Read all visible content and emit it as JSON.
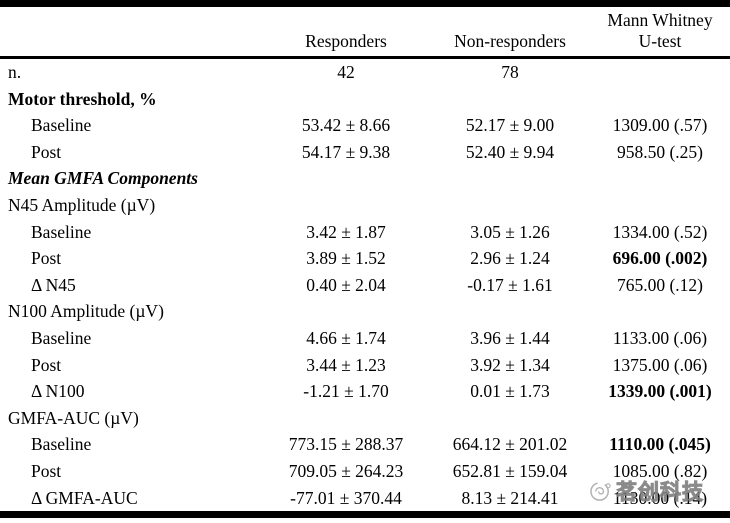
{
  "table": {
    "header": {
      "corner": "",
      "col_responders": "Responders",
      "col_nonresponders": "Non-responders",
      "col_utest_line1": "Mann Whitney",
      "col_utest_line2": "U-test"
    },
    "rows": [
      {
        "label": "n.",
        "label_style": "plain",
        "indent": false,
        "c2": "42",
        "c3": "78",
        "c4": "",
        "c4_bold": false
      },
      {
        "label": "Motor threshold, %",
        "label_style": "bold",
        "indent": false,
        "c2": "",
        "c3": "",
        "c4": "",
        "c4_bold": false
      },
      {
        "label": "Baseline",
        "label_style": "plain",
        "indent": true,
        "c2": "53.42 ± 8.66",
        "c3": "52.17 ± 9.00",
        "c4": "1309.00 (.57)",
        "c4_bold": false
      },
      {
        "label": "Post",
        "label_style": "plain",
        "indent": true,
        "c2": "54.17 ± 9.38",
        "c3": "52.40 ± 9.94",
        "c4": "958.50 (.25)",
        "c4_bold": false
      },
      {
        "label": "Mean GMFA Components",
        "label_style": "bolditalic",
        "indent": false,
        "c2": "",
        "c3": "",
        "c4": "",
        "c4_bold": false
      },
      {
        "label": "N45 Amplitude (µV)",
        "label_style": "plain",
        "indent": false,
        "c2": "",
        "c3": "",
        "c4": "",
        "c4_bold": false
      },
      {
        "label": "Baseline",
        "label_style": "plain",
        "indent": true,
        "c2": "3.42 ± 1.87",
        "c3": "3.05 ± 1.26",
        "c4": "1334.00 (.52)",
        "c4_bold": false
      },
      {
        "label": "Post",
        "label_style": "plain",
        "indent": true,
        "c2": "3.89 ± 1.52",
        "c3": "2.96 ± 1.24",
        "c4": "696.00 (.002)",
        "c4_bold": true
      },
      {
        "label": "Δ N45",
        "label_style": "plain",
        "indent": true,
        "c2": "0.40 ± 2.04",
        "c3": "-0.17 ± 1.61",
        "c4": "765.00 (.12)",
        "c4_bold": false
      },
      {
        "label": "N100 Amplitude (µV)",
        "label_style": "plain",
        "indent": false,
        "c2": "",
        "c3": "",
        "c4": "",
        "c4_bold": false
      },
      {
        "label": "Baseline",
        "label_style": "plain",
        "indent": true,
        "c2": "4.66 ± 1.74",
        "c3": "3.96 ± 1.44",
        "c4": "1133.00 (.06)",
        "c4_bold": false
      },
      {
        "label": "Post",
        "label_style": "plain",
        "indent": true,
        "c2": "3.44 ± 1.23",
        "c3": "3.92 ± 1.34",
        "c4": "1375.00 (.06)",
        "c4_bold": false
      },
      {
        "label": "Δ N100",
        "label_style": "plain",
        "indent": true,
        "c2": "-1.21 ± 1.70",
        "c3": "0.01 ± 1.73",
        "c4": "1339.00 (.001)",
        "c4_bold": true
      },
      {
        "label": "GMFA-AUC (µV)",
        "label_style": "plain",
        "indent": false,
        "c2": "",
        "c3": "",
        "c4": "",
        "c4_bold": false
      },
      {
        "label": "Baseline",
        "label_style": "plain",
        "indent": true,
        "c2": "773.15 ± 288.37",
        "c3": "664.12 ± 201.02",
        "c4": "1110.00 (.045)",
        "c4_bold": true
      },
      {
        "label": "Post",
        "label_style": "plain",
        "indent": true,
        "c2": "709.05 ± 264.23",
        "c3": "652.81 ± 159.04",
        "c4": "1085.00 (.82)",
        "c4_bold": false
      },
      {
        "label": "Δ GMFA-AUC",
        "label_style": "plain",
        "indent": true,
        "c2": "-77.01 ± 370.44",
        "c3": "8.13 ± 214.41",
        "c4": "1130.00 (.14)",
        "c4_bold": false
      }
    ]
  },
  "watermark": {
    "text": "茗创科技"
  }
}
